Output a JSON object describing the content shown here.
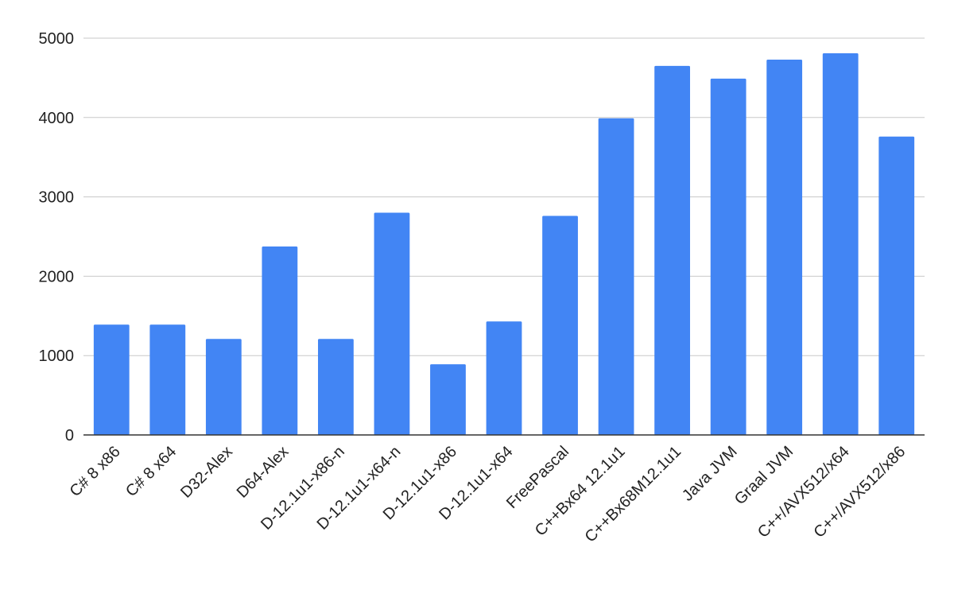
{
  "chart_data": {
    "type": "bar",
    "title": "",
    "xlabel": "",
    "ylabel": "",
    "ylim": [
      0,
      5000
    ],
    "yticks": [
      0,
      1000,
      2000,
      3000,
      4000,
      5000
    ],
    "grid": true,
    "legend": "none",
    "bar_color": "#4285f4",
    "categories": [
      "C# 8 x86",
      "C# 8 x64",
      "D32-Alex",
      "D64-Alex",
      "D-12.1u1-x86-n",
      "D-12.1u1-x64-n",
      "D-12.1u1-x86",
      "D-12.1u1-x64",
      "FreePascal",
      "C++Bx64 12.1u1",
      "C++Bx68M12.1u1",
      "Java JVM",
      "Graal JVM",
      "C++/AVX512/x64",
      "C++/AVX512/x86"
    ],
    "values": [
      1390,
      1390,
      1210,
      2375,
      1210,
      2800,
      890,
      1430,
      2760,
      3990,
      4650,
      4490,
      4730,
      4810,
      3760
    ]
  }
}
